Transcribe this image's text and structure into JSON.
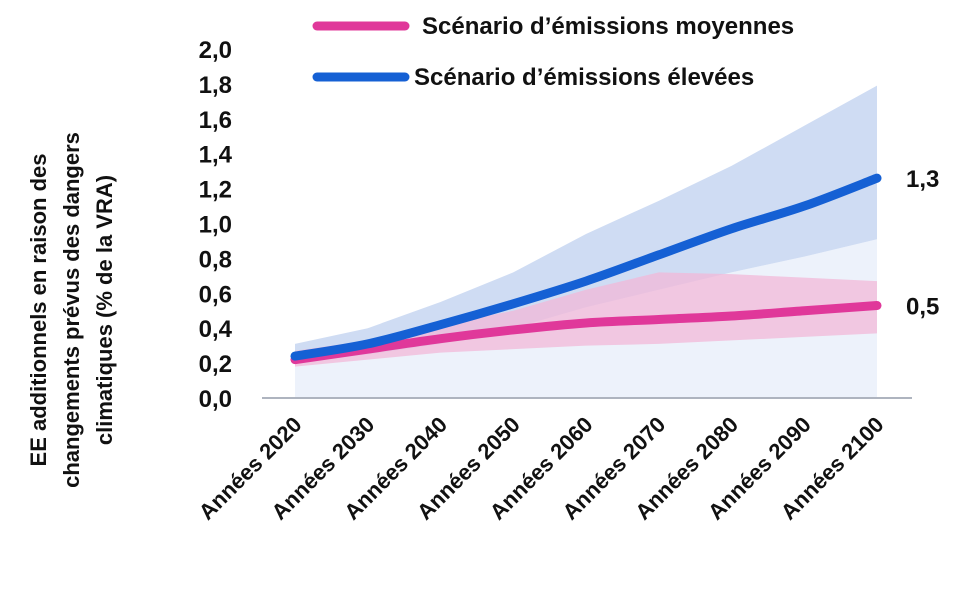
{
  "chart_data": {
    "type": "line",
    "title": "",
    "ylabel": "EE additionnels en raison des changements prévus des dangers climatiques (% de la VRA)",
    "ylabel_lines": [
      "EE additionnels en raison des",
      "changements prévus des dangers",
      "climatiques (% de la VRA)"
    ],
    "xlabel": "",
    "ylim": [
      0,
      2.0
    ],
    "yticks": [
      "0,0",
      "0,2",
      "0,4",
      "0,6",
      "0,8",
      "1,0",
      "1,2",
      "1,4",
      "1,6",
      "1,8",
      "2,0"
    ],
    "categories": [
      "Années 2020",
      "Années 2030",
      "Années 2040",
      "Années 2050",
      "Années 2060",
      "Années 2070",
      "Années 2080",
      "Années 2090",
      "Années 2100"
    ],
    "legend_position": "top",
    "grid": false,
    "series": [
      {
        "name": "Scénario d’émissions moyennes",
        "color": "#e0389a",
        "band_color": "#f1b8d8",
        "values": [
          0.22,
          0.28,
          0.34,
          0.39,
          0.43,
          0.45,
          0.47,
          0.5,
          0.53
        ],
        "lower": [
          0.18,
          0.22,
          0.26,
          0.28,
          0.3,
          0.31,
          0.33,
          0.35,
          0.37
        ],
        "upper": [
          0.27,
          0.33,
          0.42,
          0.5,
          0.62,
          0.72,
          0.71,
          0.69,
          0.67
        ],
        "end_label": "0,5"
      },
      {
        "name": "Scénario d’émissions élevées",
        "color": "#1560d4",
        "band_color": "#cfdcf3",
        "values": [
          0.24,
          0.31,
          0.42,
          0.54,
          0.67,
          0.82,
          0.97,
          1.1,
          1.26
        ],
        "lower": [
          0.2,
          0.25,
          0.31,
          0.4,
          0.52,
          0.62,
          0.72,
          0.81,
          0.91
        ],
        "upper": [
          0.31,
          0.4,
          0.55,
          0.72,
          0.94,
          1.13,
          1.33,
          1.56,
          1.79
        ],
        "end_label": "1,3"
      }
    ],
    "baseline_band_color": "#edf2fb"
  }
}
